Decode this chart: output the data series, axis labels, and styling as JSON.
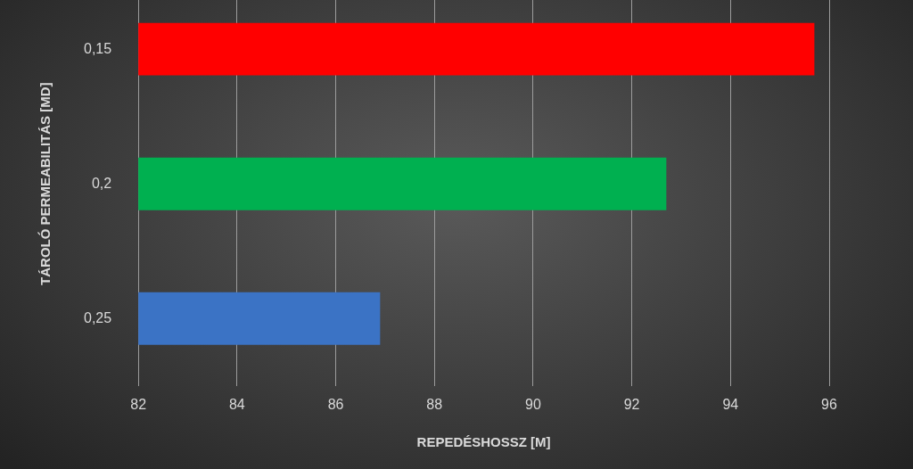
{
  "chart_data": {
    "type": "bar",
    "orientation": "horizontal",
    "xlabel": "REPEDÉSHOSSZ [M]",
    "ylabel": "TÁROLÓ PERMEABILITÁS [MD]",
    "categories": [
      "0,15",
      "0,2",
      "0,25"
    ],
    "values": [
      95.7,
      92.7,
      86.9
    ],
    "colors": [
      "#ff0000",
      "#00b050",
      "#3b73c5"
    ],
    "xlim": [
      82,
      96
    ],
    "xticks": [
      82,
      84,
      86,
      88,
      90,
      92,
      94,
      96
    ],
    "grid": "x"
  }
}
